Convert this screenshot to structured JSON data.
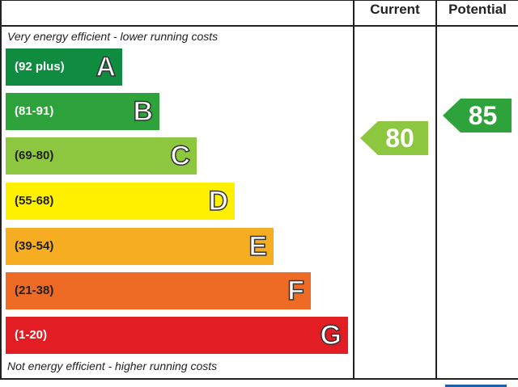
{
  "header": {
    "current": "Current",
    "potential": "Potential"
  },
  "top_note": "Very energy efficient - lower running costs",
  "bottom_note": "Not energy efficient - higher running costs",
  "chart_data": {
    "type": "bar",
    "categories": [
      "A",
      "B",
      "C",
      "D",
      "E",
      "F",
      "G"
    ],
    "ranges": [
      "(92 plus)",
      "(81-91)",
      "(69-80)",
      "(55-68)",
      "(39-54)",
      "(21-38)",
      "(1-20)"
    ],
    "colors": [
      "#0f8c3f",
      "#2ea33b",
      "#8dc63f",
      "#fff000",
      "#f7ad22",
      "#ee6b25",
      "#e31d24"
    ],
    "current": {
      "value": 80,
      "label": "80",
      "color": "#8dc63f"
    },
    "potential": {
      "value": 85,
      "label": "85",
      "color": "#2ea33b"
    }
  }
}
